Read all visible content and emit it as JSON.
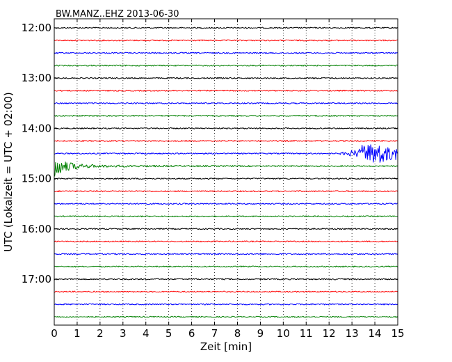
{
  "chart_data": {
    "type": "line",
    "title": "BW.MANZ..EHZ 2013-06-30",
    "xlabel": "Zeit  [min]",
    "ylabel": "UTC (Lokalzeit = UTC + 02:00)",
    "xlim": [
      0,
      15
    ],
    "x_ticks": [
      "0",
      "1",
      "2",
      "3",
      "4",
      "5",
      "6",
      "7",
      "8",
      "9",
      "10",
      "11",
      "12",
      "13",
      "14",
      "15"
    ],
    "y_ticks": [
      "12:00",
      "13:00",
      "14:00",
      "15:00",
      "16:00",
      "17:00"
    ],
    "grid": "vertical dotted",
    "trace_interval_min": 15,
    "colors": [
      "#000000",
      "#ff0000",
      "#0000ff",
      "#008000"
    ],
    "rows": [
      {
        "start": "12:00",
        "color": "#000000",
        "event": null
      },
      {
        "start": "12:15",
        "color": "#ff0000",
        "event": null
      },
      {
        "start": "12:30",
        "color": "#0000ff",
        "event": null
      },
      {
        "start": "12:45",
        "color": "#008000",
        "event": null
      },
      {
        "start": "13:00",
        "color": "#000000",
        "event": null
      },
      {
        "start": "13:15",
        "color": "#ff0000",
        "event": null
      },
      {
        "start": "13:30",
        "color": "#0000ff",
        "event": null
      },
      {
        "start": "13:45",
        "color": "#008000",
        "event": null
      },
      {
        "start": "14:00",
        "color": "#000000",
        "event": null
      },
      {
        "start": "14:15",
        "color": "#ff0000",
        "event": null
      },
      {
        "start": "14:30",
        "color": "#0000ff",
        "event": {
          "onset_min": 12.4,
          "peak_min": 13.9,
          "kind": "growing"
        }
      },
      {
        "start": "14:45",
        "color": "#008000",
        "event": {
          "onset_min": 0.0,
          "peak_min": 0.1,
          "kind": "decaying"
        }
      },
      {
        "start": "15:00",
        "color": "#000000",
        "event": null
      },
      {
        "start": "15:15",
        "color": "#ff0000",
        "event": null
      },
      {
        "start": "15:30",
        "color": "#0000ff",
        "event": null
      },
      {
        "start": "15:45",
        "color": "#008000",
        "event": null
      },
      {
        "start": "16:00",
        "color": "#000000",
        "event": null
      },
      {
        "start": "16:15",
        "color": "#ff0000",
        "event": null
      },
      {
        "start": "16:30",
        "color": "#0000ff",
        "event": null
      },
      {
        "start": "16:45",
        "color": "#008000",
        "event": null
      },
      {
        "start": "17:00",
        "color": "#000000",
        "event": null
      },
      {
        "start": "17:15",
        "color": "#ff0000",
        "event": null
      },
      {
        "start": "17:30",
        "color": "#0000ff",
        "event": null
      },
      {
        "start": "17:45",
        "color": "#008000",
        "event": null
      }
    ]
  }
}
